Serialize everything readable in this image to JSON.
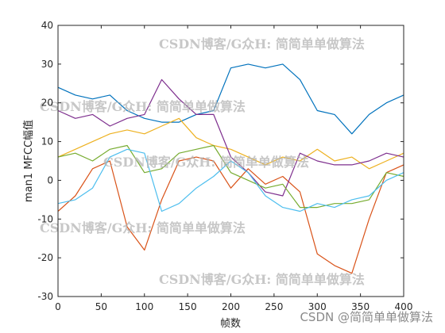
{
  "chart_data": {
    "type": "line",
    "xlabel": "帧数",
    "ylabel": "man1 MFCC幅值",
    "xlim": [
      0,
      400
    ],
    "ylim": [
      -30,
      40
    ],
    "xticks": [
      0,
      50,
      100,
      150,
      200,
      250,
      300,
      350,
      400
    ],
    "yticks": [
      -30,
      -20,
      -10,
      0,
      10,
      20,
      30,
      40
    ],
    "grid": false,
    "legend": "none",
    "colors": [
      "#0072BD",
      "#D95319",
      "#EDB120",
      "#7E2F8E",
      "#77AC30",
      "#4DBEEE"
    ],
    "series": [
      {
        "x": [
          0,
          20,
          40,
          60,
          80,
          100,
          120,
          140,
          160,
          180,
          200,
          220,
          240,
          260,
          280,
          300,
          320,
          340,
          360,
          380,
          400
        ],
        "values": [
          24,
          22,
          21,
          22,
          18,
          16,
          15,
          15,
          17,
          18,
          29,
          30,
          29,
          30,
          26,
          18,
          17,
          12,
          17,
          20,
          22
        ]
      },
      {
        "x": [
          0,
          20,
          40,
          60,
          80,
          100,
          120,
          140,
          160,
          180,
          200,
          220,
          240,
          260,
          280,
          300,
          320,
          340,
          360,
          380,
          400
        ],
        "values": [
          -8,
          -4,
          3,
          5,
          -12,
          -18,
          -5,
          5,
          6,
          5,
          -2,
          3,
          -1,
          1,
          -3,
          -19,
          -22,
          -24,
          -10,
          2,
          4
        ]
      },
      {
        "x": [
          0,
          20,
          40,
          60,
          80,
          100,
          120,
          140,
          160,
          180,
          200,
          220,
          240,
          260,
          280,
          300,
          320,
          340,
          360,
          380,
          400
        ],
        "values": [
          6,
          8,
          10,
          12,
          13,
          12,
          14,
          16,
          11,
          9,
          8,
          6,
          4,
          6,
          5,
          8,
          5,
          6,
          3,
          5,
          7
        ]
      },
      {
        "x": [
          0,
          20,
          40,
          60,
          80,
          100,
          120,
          140,
          160,
          180,
          200,
          220,
          240,
          260,
          280,
          300,
          320,
          340,
          360,
          380,
          400
        ],
        "values": [
          18,
          16,
          17,
          14,
          16,
          17,
          26,
          21,
          17,
          17,
          6,
          2,
          -3,
          -4,
          7,
          5,
          4,
          4,
          5,
          7,
          6
        ]
      },
      {
        "x": [
          0,
          20,
          40,
          60,
          80,
          100,
          120,
          140,
          160,
          180,
          200,
          220,
          240,
          260,
          280,
          300,
          320,
          340,
          360,
          380,
          400
        ],
        "values": [
          6,
          7,
          5,
          8,
          9,
          2,
          3,
          7,
          8,
          9,
          2,
          0,
          -2,
          -1,
          -7,
          -7,
          -6,
          -6,
          -5,
          2,
          1
        ]
      },
      {
        "x": [
          0,
          20,
          40,
          60,
          80,
          100,
          120,
          140,
          160,
          180,
          200,
          220,
          240,
          260,
          280,
          300,
          320,
          340,
          360,
          380,
          400
        ],
        "values": [
          -6,
          -5,
          -2,
          6,
          8,
          7,
          -8,
          -6,
          -2,
          1,
          5,
          2,
          -4,
          -7,
          -8,
          -6,
          -7,
          -5,
          -4,
          0,
          2
        ]
      }
    ]
  },
  "watermarks": [
    "CSDN博客/G众H: 简简单单做算法",
    "CSDN博客/G众H: 简简单单做算法",
    "CSDN博客/G众H: 简简单单做算法",
    "CSDN博客/G众H: 简简单单做算法",
    "CSDN博客/G众H: 简简单单做算法"
  ],
  "corner_watermark": "CSDN @简简单单做算法"
}
